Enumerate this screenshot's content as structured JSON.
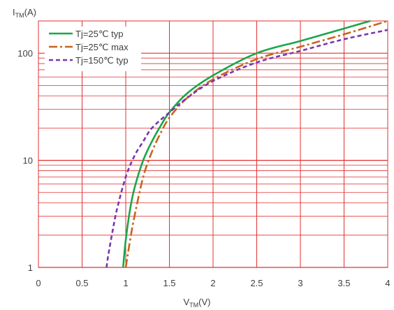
{
  "chart_data": {
    "type": "line",
    "title": "",
    "xlabel": {
      "main": "V",
      "sub": "TM",
      "unit": "(V)"
    },
    "ylabel": {
      "main": "I",
      "sub": "TM",
      "unit": "(A)"
    },
    "xlim": [
      0,
      4
    ],
    "ylim": [
      1,
      200
    ],
    "yscale": "log",
    "grid": true,
    "grid_color": "#e03030",
    "legend_position": "top-left",
    "x_ticks": [
      "0",
      "0.5",
      "1",
      "1.5",
      "2",
      "2.5",
      "3",
      "3.5",
      "4"
    ],
    "y_ticks": [
      "1",
      "10",
      "100"
    ],
    "series": [
      {
        "name": "Tj=25℃ typ",
        "color": "#1aa64a",
        "style": "solid",
        "x": [
          0.97,
          1.0,
          1.05,
          1.1,
          1.2,
          1.3,
          1.4,
          1.5,
          1.7,
          2.0,
          2.5,
          3.0,
          3.5,
          3.8
        ],
        "y": [
          1,
          1.8,
          3.5,
          5.5,
          10,
          15,
          21,
          28,
          42,
          62,
          100,
          130,
          170,
          200
        ]
      },
      {
        "name": "Tj=25℃ max",
        "color": "#c8641e",
        "style": "dashdot",
        "x": [
          1.0,
          1.05,
          1.1,
          1.2,
          1.3,
          1.4,
          1.5,
          1.7,
          2.0,
          2.5,
          3.0,
          3.5,
          4.0
        ],
        "y": [
          1,
          1.8,
          3,
          7,
          12,
          18,
          25,
          38,
          57,
          88,
          115,
          150,
          200
        ]
      },
      {
        "name": "Tj=150℃ typ",
        "color": "#7a35b0",
        "style": "dashed",
        "x": [
          0.78,
          0.8,
          0.85,
          0.9,
          1.0,
          1.1,
          1.2,
          1.3,
          1.5,
          1.7,
          2.0,
          2.5,
          3.0,
          3.5,
          4.0
        ],
        "y": [
          1,
          1.3,
          2.2,
          3.5,
          7,
          11,
          15,
          20,
          28,
          38,
          55,
          82,
          105,
          135,
          165
        ]
      }
    ]
  }
}
